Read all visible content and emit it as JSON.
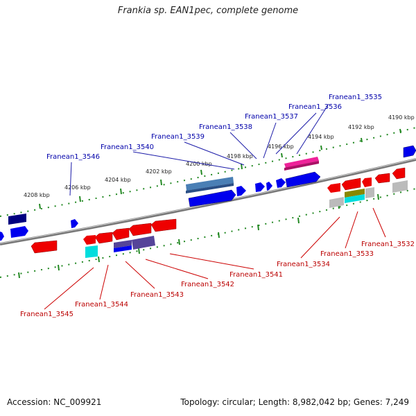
{
  "title": "Frankia sp. EAN1pec, complete genome",
  "accession": "Accession: NC_009921",
  "summary": "Topology: circular; Length: 8,982,042 bp; Genes: 7,249",
  "ticks": {
    "upper": [
      "4190 kbp",
      "4192 kbp",
      "4194 kbp",
      "4196 kbp",
      "4198 kbp",
      "4200 kbp",
      "4202 kbp",
      "4204 kbp",
      "4206 kbp",
      "4208 kbp"
    ]
  },
  "genes_forward": [
    {
      "label": "Franean1_3535",
      "color": "#1a1aa8"
    },
    {
      "label": "Franean1_3536",
      "color": "#1a1aa8"
    },
    {
      "label": "Franean1_3537",
      "color": "#1a1aa8"
    },
    {
      "label": "Franean1_3538",
      "color": "#1a1aa8"
    },
    {
      "label": "Franean1_3539",
      "color": "#1a1aa8"
    },
    {
      "label": "Franean1_3540",
      "color": "#1a1aa8"
    },
    {
      "label": "Franean1_3546",
      "color": "#1a1aa8"
    }
  ],
  "genes_reverse": [
    {
      "label": "Franean1_3532",
      "color": "#cc0000"
    },
    {
      "label": "Franean1_3533",
      "color": "#cc0000"
    },
    {
      "label": "Franean1_3534",
      "color": "#cc0000"
    },
    {
      "label": "Franean1_3541",
      "color": "#cc0000"
    },
    {
      "label": "Franean1_3542",
      "color": "#cc0000"
    },
    {
      "label": "Franean1_3543",
      "color": "#cc0000"
    },
    {
      "label": "Franean1_3544",
      "color": "#cc0000"
    },
    {
      "label": "Franean1_3545",
      "color": "#cc0000"
    }
  ],
  "colors": {
    "forward": "#0000ee",
    "reverse": "#ee0000",
    "backbone": "#888888",
    "tick": "#228822",
    "magenta": "#ee2299",
    "steel": "#4a7fb5",
    "navy": "#000080",
    "cyan": "#00dddd",
    "slate": "#554499",
    "olive": "#888800",
    "grey": "#bbbbbb"
  }
}
